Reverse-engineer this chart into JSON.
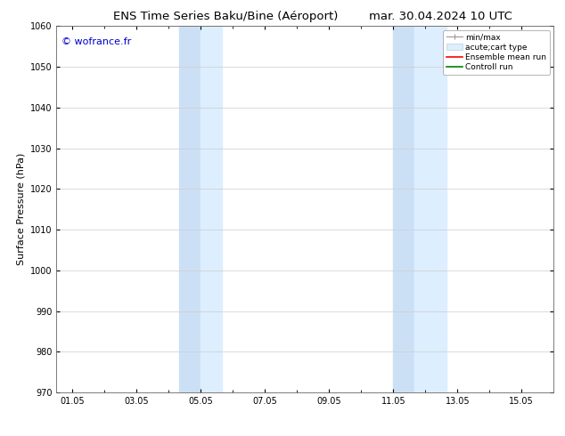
{
  "title_left": "ENS Time Series Baku/Bine (Aéroport)",
  "title_right": "mar. 30.04.2024 10 UTC",
  "ylabel": "Surface Pressure (hPa)",
  "ylim": [
    970,
    1060
  ],
  "yticks": [
    970,
    980,
    990,
    1000,
    1010,
    1020,
    1030,
    1040,
    1050,
    1060
  ],
  "xtick_labels": [
    "01.05",
    "03.05",
    "05.05",
    "07.05",
    "09.05",
    "11.05",
    "13.05",
    "15.05"
  ],
  "xtick_positions": [
    1,
    3,
    5,
    7,
    9,
    11,
    13,
    15
  ],
  "xlim": [
    0.5,
    16.0
  ],
  "blue_shade_regions": [
    {
      "xstart": 4.33,
      "xend": 4.99,
      "color": "#cce0f5"
    },
    {
      "xstart": 4.99,
      "xend": 5.67,
      "color": "#ddeeff"
    },
    {
      "xstart": 11.0,
      "xend": 11.66,
      "color": "#cce0f5"
    },
    {
      "xstart": 11.66,
      "xend": 12.67,
      "color": "#ddeeff"
    }
  ],
  "watermark": "© wofrance.fr",
  "watermark_color": "#0000cc",
  "bg_color": "#ffffff",
  "plot_bg_color": "#ffffff",
  "grid_color": "#cccccc",
  "title_fontsize": 9.5,
  "tick_fontsize": 7,
  "ylabel_fontsize": 8,
  "legend_fontsize": 6.5,
  "watermark_fontsize": 8
}
